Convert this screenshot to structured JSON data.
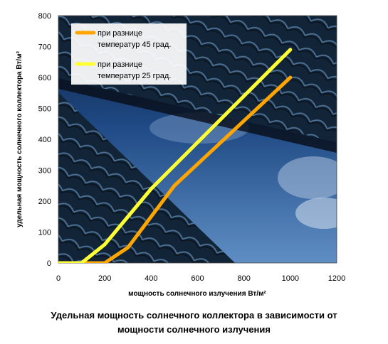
{
  "chart_data": {
    "type": "line",
    "xlabel": "мощность солнечного излучения Вт/м²",
    "ylabel": "удельная мощность солнечного коллектора Вт/м²",
    "xlim": [
      0,
      1200
    ],
    "ylim": [
      0,
      800
    ],
    "xticks": [
      "0",
      "200",
      "400",
      "600",
      "800",
      "1000",
      "1200"
    ],
    "yticks": [
      "0",
      "100",
      "200",
      "300",
      "400",
      "500",
      "600",
      "700",
      "800"
    ],
    "legend_position": "top-left",
    "series": [
      {
        "name": "при разнице температур 45 град.",
        "legend_lines": [
          "при разнице",
          "температур 45 град."
        ],
        "color": "#FFA500",
        "x": [
          0,
          200,
          300,
          500,
          1000
        ],
        "y": [
          0,
          0,
          50,
          250,
          600
        ]
      },
      {
        "name": "при разнице температур 25 град.",
        "legend_lines": [
          "при разнице",
          "температур 25 град."
        ],
        "color": "#FFFF33",
        "x": [
          0,
          100,
          200,
          400,
          1000
        ],
        "y": [
          0,
          0,
          60,
          240,
          690
        ]
      }
    ],
    "caption_lines": [
      "Удельная мощность солнечного коллектора в зависимости от",
      "мощности солнечного излучения"
    ]
  }
}
